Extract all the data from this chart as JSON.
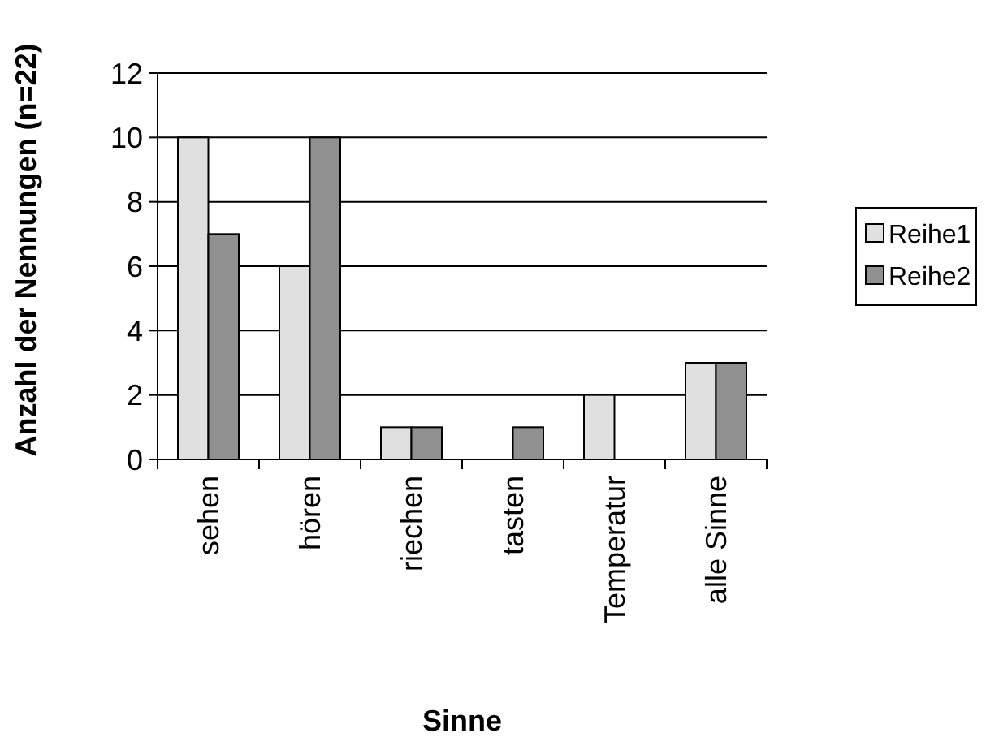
{
  "chart_data": {
    "type": "bar",
    "xlabel": "Sinne",
    "ylabel": "Anzahl der Nennungen (n=22)",
    "categories": [
      "sehen",
      "hören",
      "riechen",
      "tasten",
      "Temperatur",
      "alle Sinne"
    ],
    "series": [
      {
        "name": "Reihe1",
        "color": "#e0e0e0",
        "values": [
          10,
          6,
          1,
          0,
          2,
          3
        ]
      },
      {
        "name": "Reihe2",
        "color": "#909090",
        "values": [
          7,
          10,
          1,
          1,
          0,
          3
        ]
      }
    ],
    "ylim": [
      0,
      12
    ],
    "yticks": [
      0,
      2,
      4,
      6,
      8,
      10,
      12
    ],
    "grid": "y",
    "legend": "right"
  }
}
